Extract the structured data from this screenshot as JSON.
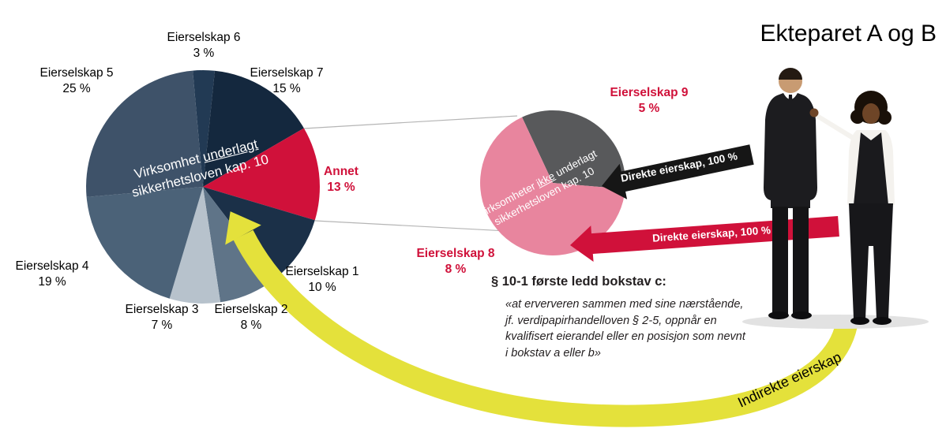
{
  "title": "Ekteparet A og B",
  "colors": {
    "accent_red": "#d0113a",
    "pink": "#e8859e",
    "grey": "#58595b",
    "yellow": "#e4e13b",
    "arrow_black": "#161616"
  },
  "chart_data": [
    {
      "type": "pie",
      "name": "virksomhet-underlagt-pie",
      "title": "Virksomhet underlagt sikkerhetsloven kap. 10",
      "caption": {
        "pre": "Virksomhet ",
        "underline": "underlagt",
        "post": "",
        "line2": "sikkerhetsloven kap. 10"
      },
      "slices": [
        {
          "label": "Eierselskap 6",
          "value": 3,
          "pct": "3 %",
          "color": "#223a54"
        },
        {
          "label": "Eierselskap 7",
          "value": 15,
          "pct": "15 %",
          "color": "#14283e"
        },
        {
          "label": "Annet",
          "value": 13,
          "pct": "13 %",
          "color": "#d0113a",
          "highlight": true
        },
        {
          "label": "Eierselskap 1",
          "value": 10,
          "pct": "10 %",
          "color": "#1b3048"
        },
        {
          "label": "Eierselskap 2",
          "value": 8,
          "pct": "8 %",
          "color": "#5f7488"
        },
        {
          "label": "Eierselskap 3",
          "value": 7,
          "pct": "7 %",
          "color": "#b7c2cc"
        },
        {
          "label": "Eierselskap 4",
          "value": 19,
          "pct": "19 %",
          "color": "#4b6278"
        },
        {
          "label": "Eierselskap 5",
          "value": 25,
          "pct": "25 %",
          "color": "#3e5269"
        }
      ]
    },
    {
      "type": "pie",
      "name": "virksomheter-ikke-underlagt-pie",
      "title": "Virksomheter ikke underlagt sikkerhetsloven kap. 10",
      "caption": {
        "pre": "Virksomheter ",
        "underline": "ikke",
        "post": " underlagt",
        "line2": "sikkerhetsloven kap. 10"
      },
      "slices": [
        {
          "name": "grey-share",
          "value": 33.3,
          "color": "#58595b"
        },
        {
          "name": "pink-share",
          "value": 66.7,
          "color": "#e8859e"
        }
      ],
      "callouts": [
        {
          "label": "Eierselskap 9",
          "pct": "5 %"
        },
        {
          "label": "Eierselskap 8",
          "pct": "8 %"
        }
      ]
    }
  ],
  "arrows": {
    "black_label": "Direkte eierskap, 100 %",
    "red_label": "Direkte eierskap, 100 %",
    "indirect_label": "Indirekte eierskap"
  },
  "law_text": {
    "heading": "§ 10-1 første ledd bokstav c:",
    "lines": [
      "«at erververen sammen med sine nærstående,",
      "jf. verdipapirhandelloven § 2-5, oppnår en",
      "kvalifisert eierandel eller en posisjon som nevnt",
      "i bokstav a eller b»"
    ]
  }
}
